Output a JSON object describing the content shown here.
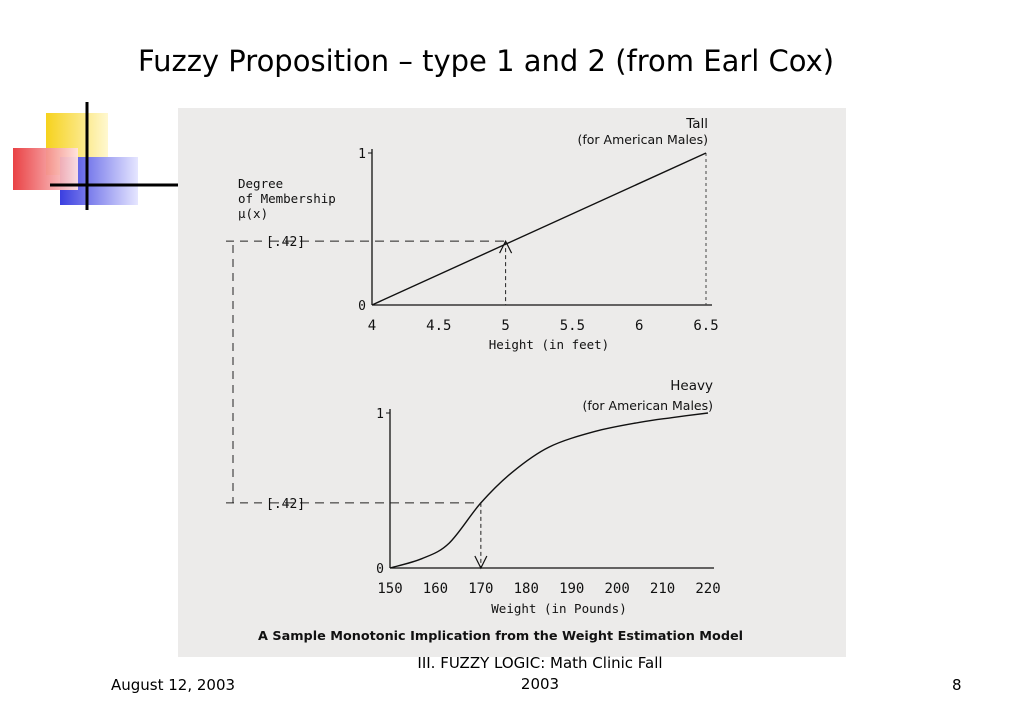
{
  "slide": {
    "title": "Fuzzy Proposition – type 1 and 2 (from Earl Cox)",
    "footer_date": "August 12, 2003",
    "footer_center": [
      "III. FUZZY LOGIC: Math Clinic Fall",
      "2003"
    ],
    "page_number": "8"
  },
  "colors": {
    "yellow": "#f6d21d",
    "red": "#e8383b",
    "blue": "#3b3fe0",
    "figure_bg": "#ecebea"
  },
  "figure": {
    "caption": "A Sample Monotonic Implication from the Weight Estimation Model",
    "ylabel": [
      "Degree",
      "of Membership",
      "μ(x)"
    ],
    "marker_label": "[.42]"
  },
  "chart_data": [
    {
      "type": "line",
      "title": [
        "Tall",
        "(for American Males)"
      ],
      "xlabel": "Height (in feet)",
      "x_ticks": [
        "4",
        "4.5",
        "5",
        "5.5",
        "6",
        "6.5"
      ],
      "y_ticks": [
        "0",
        "1"
      ],
      "xlim": [
        4,
        6.5
      ],
      "ylim": [
        0,
        1
      ],
      "series": [
        {
          "x": [
            4,
            6.5
          ],
          "y": [
            0,
            1
          ]
        }
      ],
      "marker": {
        "x": 5,
        "y": 0.42
      }
    },
    {
      "type": "line",
      "title": [
        "Heavy",
        "(for American Males)"
      ],
      "xlabel": "Weight (in Pounds)",
      "x_ticks": [
        "150",
        "160",
        "170",
        "180",
        "190",
        "200",
        "210",
        "220"
      ],
      "y_ticks": [
        "0",
        "1"
      ],
      "xlim": [
        150,
        220
      ],
      "ylim": [
        0,
        1
      ],
      "series": [
        {
          "x": [
            150,
            157,
            163,
            170,
            177,
            185,
            195,
            205,
            212,
            220
          ],
          "y": [
            0,
            0.06,
            0.16,
            0.42,
            0.62,
            0.78,
            0.88,
            0.94,
            0.97,
            1.0
          ]
        }
      ],
      "marker": {
        "x": 170,
        "y": 0.42
      }
    }
  ]
}
